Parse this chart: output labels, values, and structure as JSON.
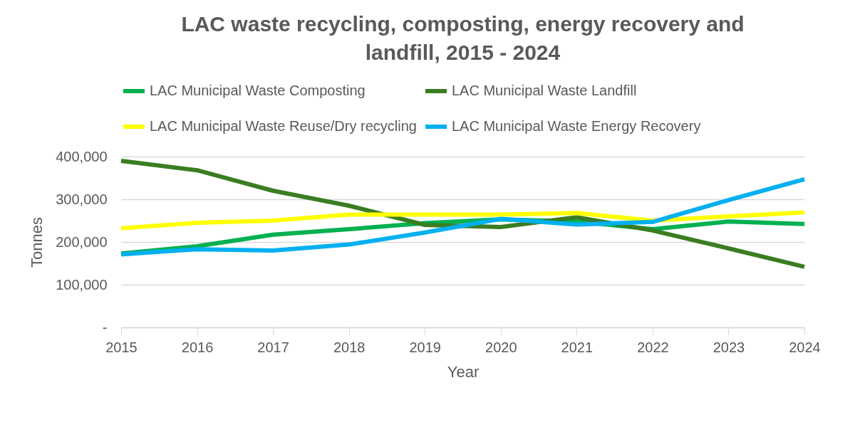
{
  "chart_data": {
    "type": "line",
    "title": "LAC waste recycling, composting, energy recovery and landfill, 2015 - 2024",
    "xlabel": "Year",
    "ylabel": "Tonnes",
    "categories": [
      "2015",
      "2016",
      "2017",
      "2018",
      "2019",
      "2020",
      "2021",
      "2022",
      "2023",
      "2024"
    ],
    "series": [
      {
        "name": "LAC Municipal Waste Composting",
        "color": "#00b050",
        "values": [
          173000,
          190000,
          217000,
          230000,
          244000,
          253000,
          248000,
          230000,
          248000,
          242000
        ]
      },
      {
        "name": "LAC Municipal Waste Landfill",
        "color": "#3a7d22",
        "values": [
          390000,
          368000,
          320000,
          285000,
          240000,
          235000,
          258000,
          227000,
          185000,
          142000
        ]
      },
      {
        "name": "LAC Municipal Waste Reuse/Dry recycling",
        "color": "#ffff00",
        "values": [
          232000,
          245000,
          250000,
          264000,
          264000,
          264000,
          268000,
          250000,
          260000,
          269000
        ]
      },
      {
        "name": "LAC Municipal Waste Energy Recovery",
        "color": "#00b0f0",
        "values": [
          171000,
          183000,
          180000,
          194000,
          222000,
          254000,
          241000,
          247000,
          298000,
          347000
        ]
      }
    ],
    "ylim": [
      0,
      400000
    ],
    "yticks": [
      {
        "value": 0,
        "label": "-"
      },
      {
        "value": 100000,
        "label": "100,000"
      },
      {
        "value": 200000,
        "label": "200,000"
      },
      {
        "value": 300000,
        "label": "300,000"
      },
      {
        "value": 400000,
        "label": "400,000"
      }
    ],
    "grid": "y",
    "legend": "top",
    "marker": "none",
    "line_style": "solid"
  }
}
